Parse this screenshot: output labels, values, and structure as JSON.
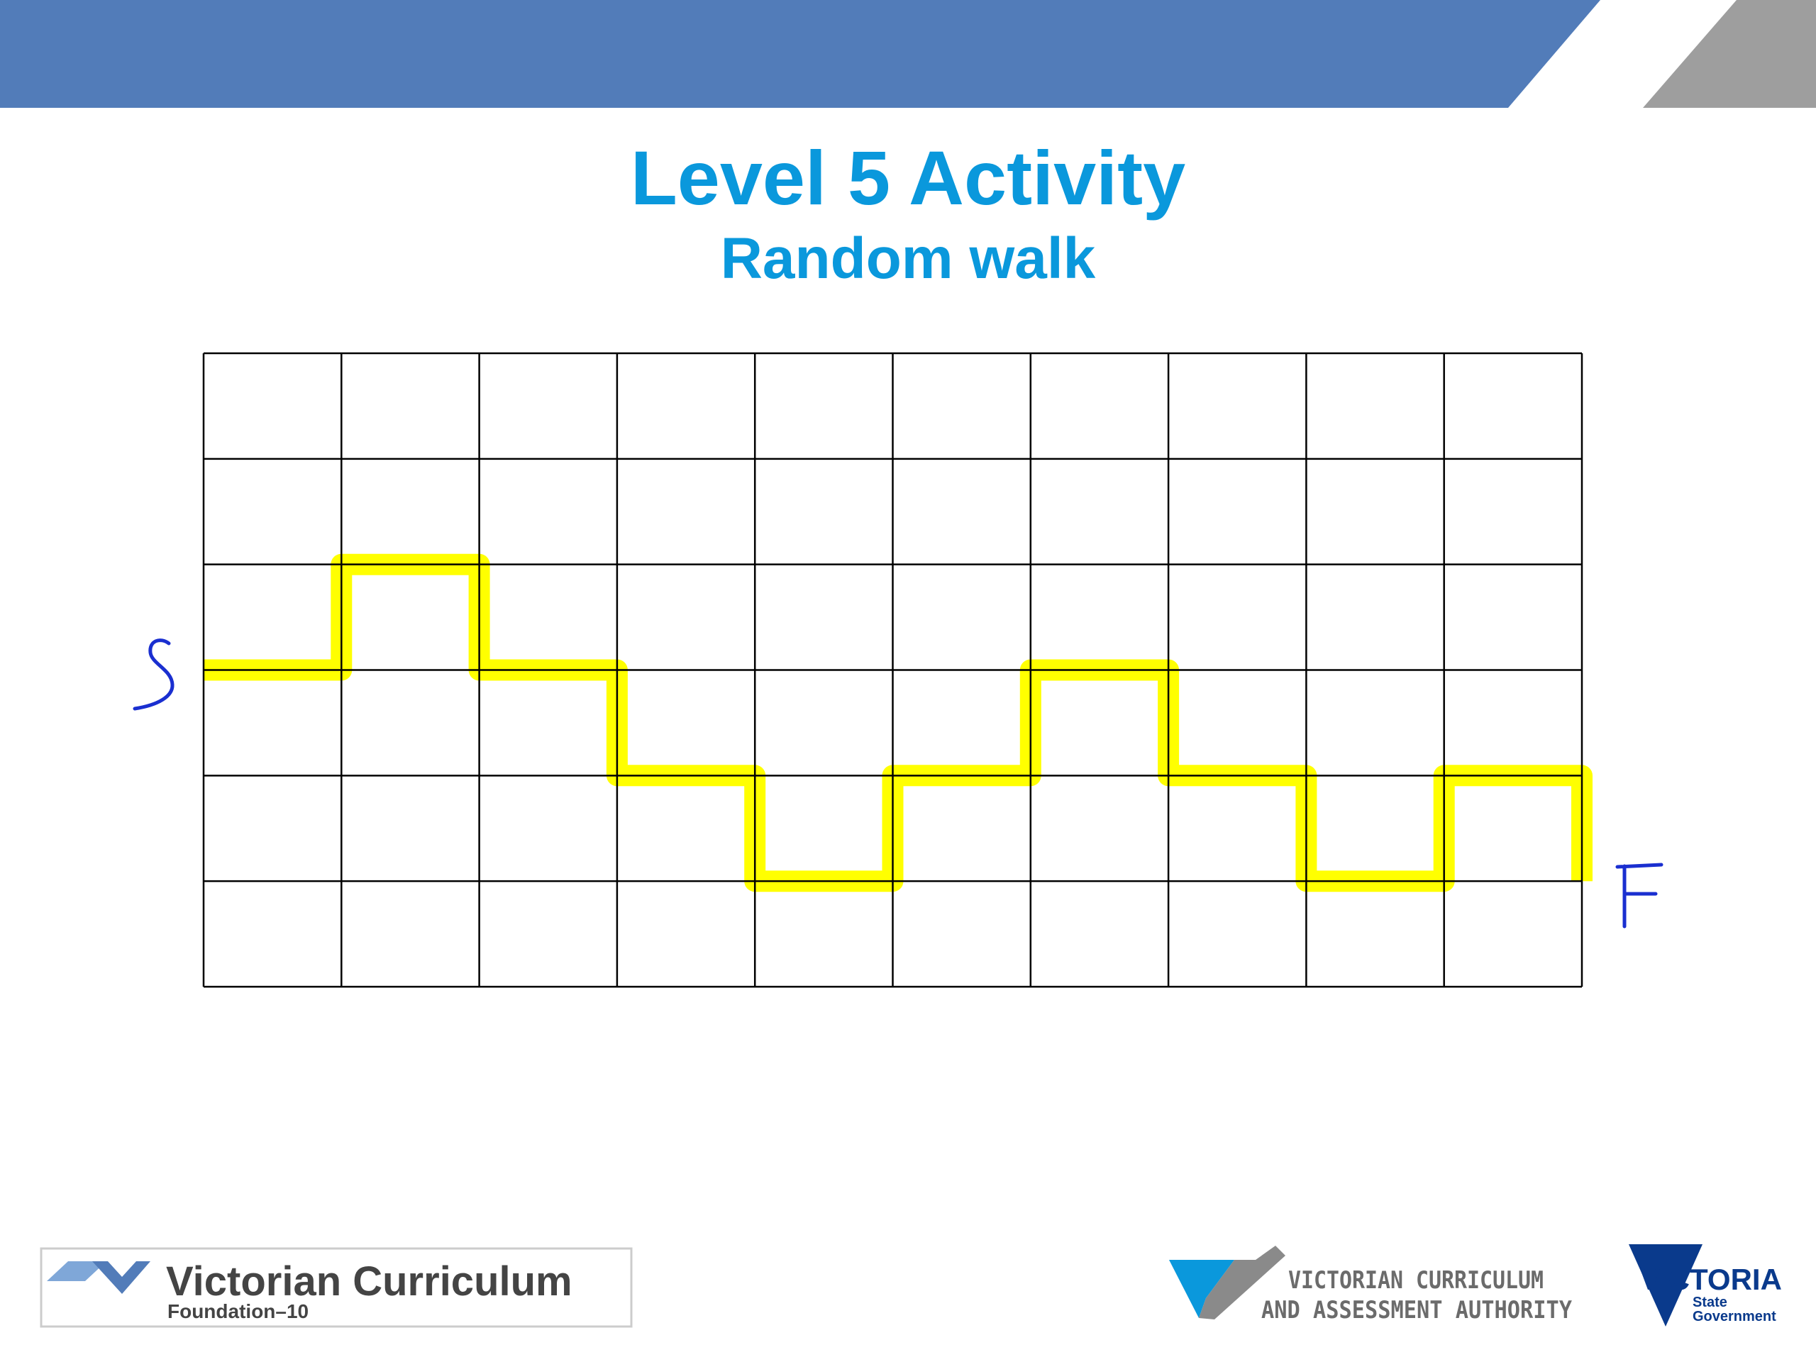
{
  "slide": {
    "title": "Level 5 Activity",
    "subtitle": "Random walk"
  },
  "grid": {
    "columns": 10,
    "rows": 6,
    "line_color": "#000000"
  },
  "walk": {
    "color": "#ffff00",
    "start_label": "S",
    "finish_label": "F",
    "start": {
      "col": 0,
      "row": 3
    },
    "steps": [
      {
        "col": 1,
        "row": 3
      },
      {
        "col": 1,
        "row": 2
      },
      {
        "col": 2,
        "row": 2
      },
      {
        "col": 2,
        "row": 3
      },
      {
        "col": 3,
        "row": 3
      },
      {
        "col": 3,
        "row": 4
      },
      {
        "col": 4,
        "row": 4
      },
      {
        "col": 4,
        "row": 5
      },
      {
        "col": 5,
        "row": 5
      },
      {
        "col": 5,
        "row": 4
      },
      {
        "col": 6,
        "row": 4
      },
      {
        "col": 6,
        "row": 3
      },
      {
        "col": 7,
        "row": 3
      },
      {
        "col": 7,
        "row": 4
      },
      {
        "col": 8,
        "row": 4
      },
      {
        "col": 8,
        "row": 5
      },
      {
        "col": 9,
        "row": 5
      },
      {
        "col": 9,
        "row": 4
      },
      {
        "col": 10,
        "row": 4
      },
      {
        "col": 10,
        "row": 5
      }
    ]
  },
  "header": {
    "band_color": "#527cb9",
    "accent_color": "#9e9e9e"
  },
  "footer": {
    "vc_logo": {
      "line1": "Victorian Curriculum",
      "line2": "Foundation–10"
    },
    "vcaa_logo": {
      "line1": "VICTORIAN CURRICULUM",
      "line2": "AND ASSESSMENT AUTHORITY"
    },
    "victoria_logo": {
      "name": "VICTORIA",
      "line1": "State",
      "line2": "Government"
    }
  }
}
